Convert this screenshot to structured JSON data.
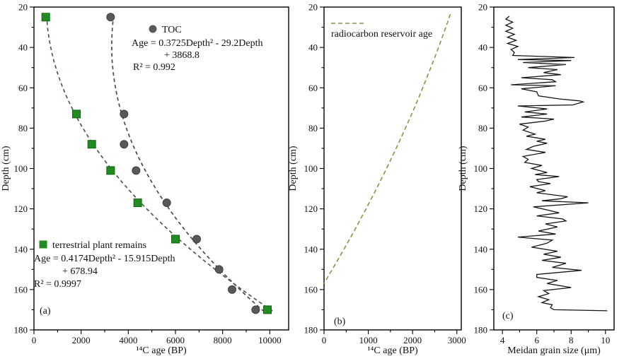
{
  "figure": {
    "description": "Three-panel depth profile figure",
    "background": "#ffffff",
    "text_color": "#111111"
  },
  "chart_data": [
    {
      "id": "a",
      "type": "scatter",
      "panel_label": "(a)",
      "xlabel": "¹⁴C age (BP)",
      "ylabel": "Depth (cm)",
      "xlim": [
        0,
        10800
      ],
      "ylim": [
        20,
        180
      ],
      "x_major_ticks": [
        0,
        2000,
        4000,
        6000,
        8000,
        10000
      ],
      "x_minor_step": 1000,
      "y_major_step": 20,
      "y_minor_step": 10,
      "series": [
        {
          "name": "TOC",
          "marker": "circle",
          "color": "#595959",
          "edge": "#3f3f3f",
          "points": [
            [
              3250,
              25
            ],
            [
              3820,
              73
            ],
            [
              3820,
              88
            ],
            [
              4330,
              101
            ],
            [
              5630,
              117
            ],
            [
              6900,
              135
            ],
            [
              7850,
              150
            ],
            [
              8400,
              160
            ],
            [
              9400,
              170
            ]
          ]
        },
        {
          "name": "terrestrial plant remains",
          "marker": "square",
          "color": "#228B22",
          "edge": "#146414",
          "points": [
            [
              500,
              25
            ],
            [
              1800,
              73
            ],
            [
              2450,
              88
            ],
            [
              3250,
              101
            ],
            [
              4400,
              117
            ],
            [
              6000,
              135
            ],
            [
              9900,
              170
            ]
          ]
        }
      ],
      "fit_curves": [
        {
          "for": "TOC",
          "a": 0.3725,
          "b": -29.2,
          "c": 3868.8,
          "depth_range": [
            24,
            171
          ],
          "color": "#4b4b4b",
          "equation_lines": [
            "Age = 0.3725Depth² - 29.2Depth",
            "+ 3868.8",
            "R² = 0.992"
          ]
        },
        {
          "for": "terrestrial plant remains",
          "a": 0.4174,
          "b": -15.915,
          "c": 678.94,
          "depth_range": [
            24,
            171
          ],
          "color": "#4a5f4a",
          "equation_lines": [
            "Age = 0.4174Depth² - 15.915Depth",
            "+ 678.94",
            "R² = 0.9997"
          ]
        }
      ],
      "annotations": [
        {
          "kind": "marker",
          "shape": "circle",
          "color": "#595959",
          "px": [
            216,
            41
          ]
        },
        {
          "kind": "text",
          "text": "TOC",
          "px": [
            229,
            46
          ],
          "anchor": "start"
        },
        {
          "kind": "text",
          "text": "Age = 0.3725Depth² - 29.2Depth",
          "px": [
            186,
            65
          ],
          "anchor": "start"
        },
        {
          "kind": "text",
          "text": "+ 3868.8",
          "px": [
            232,
            82
          ],
          "anchor": "start"
        },
        {
          "kind": "text",
          "text": "R² = 0.992",
          "px": [
            188,
            99
          ],
          "anchor": "start"
        },
        {
          "kind": "marker",
          "shape": "square",
          "color": "#228B22",
          "px": [
            61,
            346
          ]
        },
        {
          "kind": "text",
          "text": "terrestrial plant remains",
          "px": [
            74,
            351
          ],
          "anchor": "start"
        },
        {
          "kind": "text",
          "text": "Age = 0.4174Depth² - 15.915Depth",
          "px": [
            48,
            370
          ],
          "anchor": "start"
        },
        {
          "kind": "text",
          "text": "+ 678.94",
          "px": [
            88,
            388
          ],
          "anchor": "start"
        },
        {
          "kind": "text",
          "text": "R² = 0.9997",
          "px": [
            48,
            406
          ],
          "anchor": "start"
        },
        {
          "kind": "text",
          "text": "(a)",
          "px": [
            56,
            444
          ],
          "anchor": "start",
          "class": "panel-tag"
        }
      ]
    },
    {
      "id": "b",
      "type": "line",
      "panel_label": "(b)",
      "xlabel": "¹⁴C age (BP)",
      "ylabel": "Depth (cm)",
      "xlim": [
        0,
        3100
      ],
      "ylim": [
        20,
        180
      ],
      "x_major_ticks": [
        0,
        1000,
        2000,
        3000
      ],
      "x_minor_step": 500,
      "y_major_step": 20,
      "y_minor_step": 10,
      "series": [
        {
          "name": "radiocarbon reservoir age",
          "style": "dashed",
          "color": "#8f8f45",
          "points": [
            [
              2853,
              23.5
            ],
            [
              2845,
              24
            ],
            [
              2751,
              30
            ],
            [
              2587,
              40
            ],
            [
              2413,
              50
            ],
            [
              2231,
              60
            ],
            [
              2040,
              70
            ],
            [
              1840,
              80
            ],
            [
              1630,
              90
            ],
            [
              1412,
              100
            ],
            [
              1185,
              110
            ],
            [
              949,
              120
            ],
            [
              704,
              130
            ],
            [
              450,
              140
            ],
            [
              187,
              150
            ],
            [
              0,
              157
            ]
          ]
        }
      ],
      "annotations": [
        {
          "kind": "dash-sample",
          "color": "#8f8f45",
          "px": [
            468,
            33
          ],
          "to": [
            514,
            33
          ]
        },
        {
          "kind": "text",
          "text": "radiocarbon reservoir age",
          "px": [
            468,
            52
          ],
          "anchor": "start"
        },
        {
          "kind": "text",
          "text": "(b)",
          "px": [
            472,
            459
          ],
          "anchor": "start",
          "class": "panel-tag"
        }
      ]
    },
    {
      "id": "c",
      "type": "line",
      "panel_label": "(c)",
      "xlabel": "Meidan grain size (μm)",
      "ylabel": "Depth (cm)",
      "xlim": [
        3.5,
        10.5
      ],
      "ylim": [
        20,
        180
      ],
      "x_major_ticks": [
        4,
        6,
        8,
        10
      ],
      "x_minor_step": 1,
      "y_major_step": 20,
      "y_minor_step": 10,
      "series": [
        {
          "name": "median grain size",
          "style": "solid",
          "color": "#151515",
          "points": [
            [
              4.4,
              24.5
            ],
            [
              4.2,
              26
            ],
            [
              4.6,
              27.5
            ],
            [
              4.2,
              29
            ],
            [
              4.6,
              30.5
            ],
            [
              4.2,
              32
            ],
            [
              4.7,
              33.5
            ],
            [
              4.3,
              35
            ],
            [
              4.8,
              36.5
            ],
            [
              4.3,
              38
            ],
            [
              4.9,
              39.5
            ],
            [
              4.5,
              41
            ],
            [
              4.7,
              42.5
            ],
            [
              4.6,
              44
            ],
            [
              8.2,
              45
            ],
            [
              4.9,
              46
            ],
            [
              8.0,
              46.5
            ],
            [
              5.2,
              47.5
            ],
            [
              7.7,
              48.5
            ],
            [
              5.5,
              50
            ],
            [
              7.2,
              51
            ],
            [
              6.4,
              52.5
            ],
            [
              7.4,
              53.5
            ],
            [
              5.1,
              55
            ],
            [
              6.9,
              56
            ],
            [
              7.1,
              57
            ],
            [
              4.5,
              58.5
            ],
            [
              7.1,
              59
            ],
            [
              5.1,
              60.5
            ],
            [
              6.0,
              62
            ],
            [
              6.1,
              64
            ],
            [
              7.3,
              65.5
            ],
            [
              8.5,
              66.5
            ],
            [
              8.7,
              67
            ],
            [
              8.1,
              68.5
            ],
            [
              4.9,
              69
            ],
            [
              6.6,
              70.5
            ],
            [
              5.3,
              72
            ],
            [
              6.6,
              73
            ],
            [
              5.1,
              74.5
            ],
            [
              7.0,
              75.5
            ],
            [
              6.5,
              76.5
            ],
            [
              5.0,
              78
            ],
            [
              5.5,
              79.5
            ],
            [
              5.2,
              81
            ],
            [
              5.9,
              83
            ],
            [
              5.4,
              84
            ],
            [
              6.5,
              85.5
            ],
            [
              6.0,
              86.5
            ],
            [
              6.6,
              87.5
            ],
            [
              5.8,
              89
            ],
            [
              5.4,
              90.5
            ],
            [
              6.5,
              92
            ],
            [
              5.2,
              94
            ],
            [
              5.5,
              95.5
            ],
            [
              5.3,
              97
            ],
            [
              6.3,
              98.5
            ],
            [
              5.7,
              100
            ],
            [
              6.6,
              102
            ],
            [
              5.9,
              103
            ],
            [
              7.3,
              104
            ],
            [
              6.0,
              105.5
            ],
            [
              6.1,
              106.5
            ],
            [
              6.8,
              107.5
            ],
            [
              5.6,
              109
            ],
            [
              6.5,
              111
            ],
            [
              6.0,
              112
            ],
            [
              7.8,
              114
            ],
            [
              7.4,
              115
            ],
            [
              6.3,
              116
            ],
            [
              9.0,
              117
            ],
            [
              5.8,
              119
            ],
            [
              6.6,
              120.5
            ],
            [
              7.3,
              122
            ],
            [
              6.0,
              123.5
            ],
            [
              7.5,
              125
            ],
            [
              7.7,
              126
            ],
            [
              6.5,
              127.5
            ],
            [
              7.2,
              129
            ],
            [
              6.1,
              131
            ],
            [
              7.1,
              132.5
            ],
            [
              4.9,
              134
            ],
            [
              6.9,
              135.5
            ],
            [
              6.6,
              137
            ],
            [
              5.7,
              139
            ],
            [
              7.2,
              141
            ],
            [
              6.4,
              142.5
            ],
            [
              7.4,
              144
            ],
            [
              6.3,
              145.5
            ],
            [
              7.7,
              147
            ],
            [
              6.9,
              149
            ],
            [
              8.6,
              150.5
            ],
            [
              6.0,
              152.5
            ],
            [
              6.0,
              154
            ],
            [
              7.2,
              155.5
            ],
            [
              6.6,
              157
            ],
            [
              8.0,
              159
            ],
            [
              6.4,
              160.5
            ],
            [
              6.7,
              162
            ],
            [
              6.1,
              163.5
            ],
            [
              6.7,
              165
            ],
            [
              6.3,
              166.5
            ],
            [
              6.9,
              167.5
            ],
            [
              6.8,
              169
            ],
            [
              7.0,
              170
            ],
            [
              10.1,
              170.5
            ]
          ]
        }
      ],
      "annotations": [
        {
          "kind": "text",
          "text": "(c)",
          "px": [
            710,
            451
          ],
          "anchor": "start",
          "class": "panel-tag"
        }
      ]
    }
  ]
}
